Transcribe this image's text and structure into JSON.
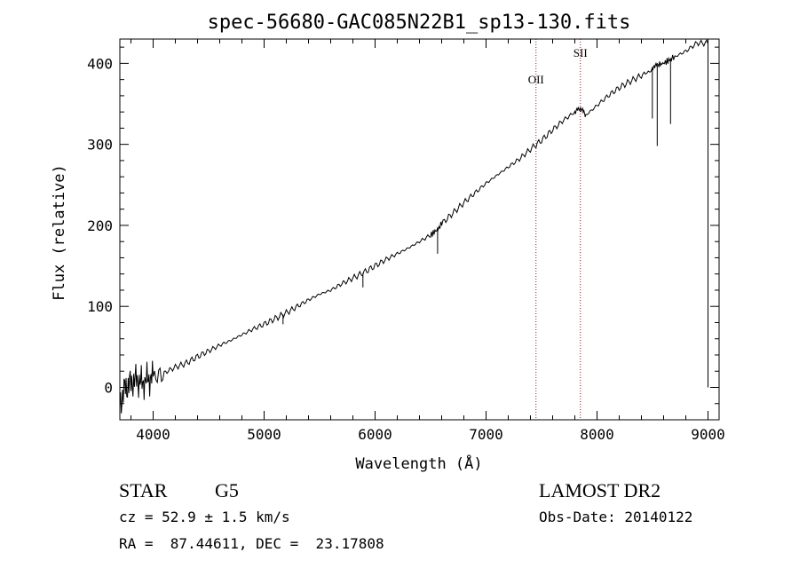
{
  "chart_data": {
    "type": "line",
    "title": "spec-56680-GAC085N22B1_sp13-130.fits",
    "xlabel": "Wavelength (Å)",
    "ylabel": "Flux (relative)",
    "xlim": [
      3700,
      9100
    ],
    "ylim": [
      -40,
      430
    ],
    "xticks": [
      4000,
      5000,
      6000,
      7000,
      8000,
      9000
    ],
    "yticks": [
      0,
      100,
      200,
      300,
      400
    ],
    "grid": false,
    "series": [
      {
        "line_color": "#000000",
        "x": [
          3700,
          3750,
          3800,
          3850,
          3900,
          3950,
          4000,
          4100,
          4200,
          4300,
          4400,
          4500,
          4600,
          4700,
          4800,
          4900,
          5000,
          5100,
          5200,
          5300,
          5400,
          5500,
          5600,
          5700,
          5800,
          5900,
          6000,
          6100,
          6200,
          6300,
          6400,
          6500,
          6563,
          6600,
          6700,
          6800,
          6900,
          7000,
          7100,
          7200,
          7300,
          7400,
          7500,
          7600,
          7700,
          7800,
          7850,
          7900,
          8000,
          8100,
          8200,
          8300,
          8400,
          8498,
          8542,
          8600,
          8662,
          8700,
          8800,
          8900,
          9000
        ],
        "y": [
          -20,
          0,
          5,
          10,
          5,
          10,
          12,
          18,
          25,
          30,
          38,
          45,
          52,
          58,
          65,
          72,
          78,
          85,
          92,
          100,
          108,
          115,
          120,
          128,
          135,
          142,
          150,
          158,
          165,
          172,
          180,
          188,
          195,
          202,
          215,
          228,
          240,
          252,
          262,
          272,
          282,
          294,
          305,
          318,
          330,
          340,
          345,
          336,
          348,
          360,
          370,
          378,
          385,
          392,
          398,
          400,
          405,
          408,
          415,
          425,
          425
        ]
      }
    ],
    "annotations": [
      {
        "label": "OII",
        "x": 7450,
        "y": 375
      },
      {
        "label": "SII",
        "x": 7850,
        "y": 408
      }
    ],
    "reference_lines": {
      "x": [
        7450,
        7850
      ],
      "color": "#8b1a1a",
      "style": "dotted"
    }
  },
  "info": {
    "class_label": "STAR",
    "subclass_label": "G5",
    "cz_text": "cz = 52.9 ± 1.5 km/s",
    "coords_text": "RA =  87.44611, DEC =  23.17808",
    "survey_label": "LAMOST DR2",
    "obs_date_text": "Obs-Date: 20140122"
  }
}
